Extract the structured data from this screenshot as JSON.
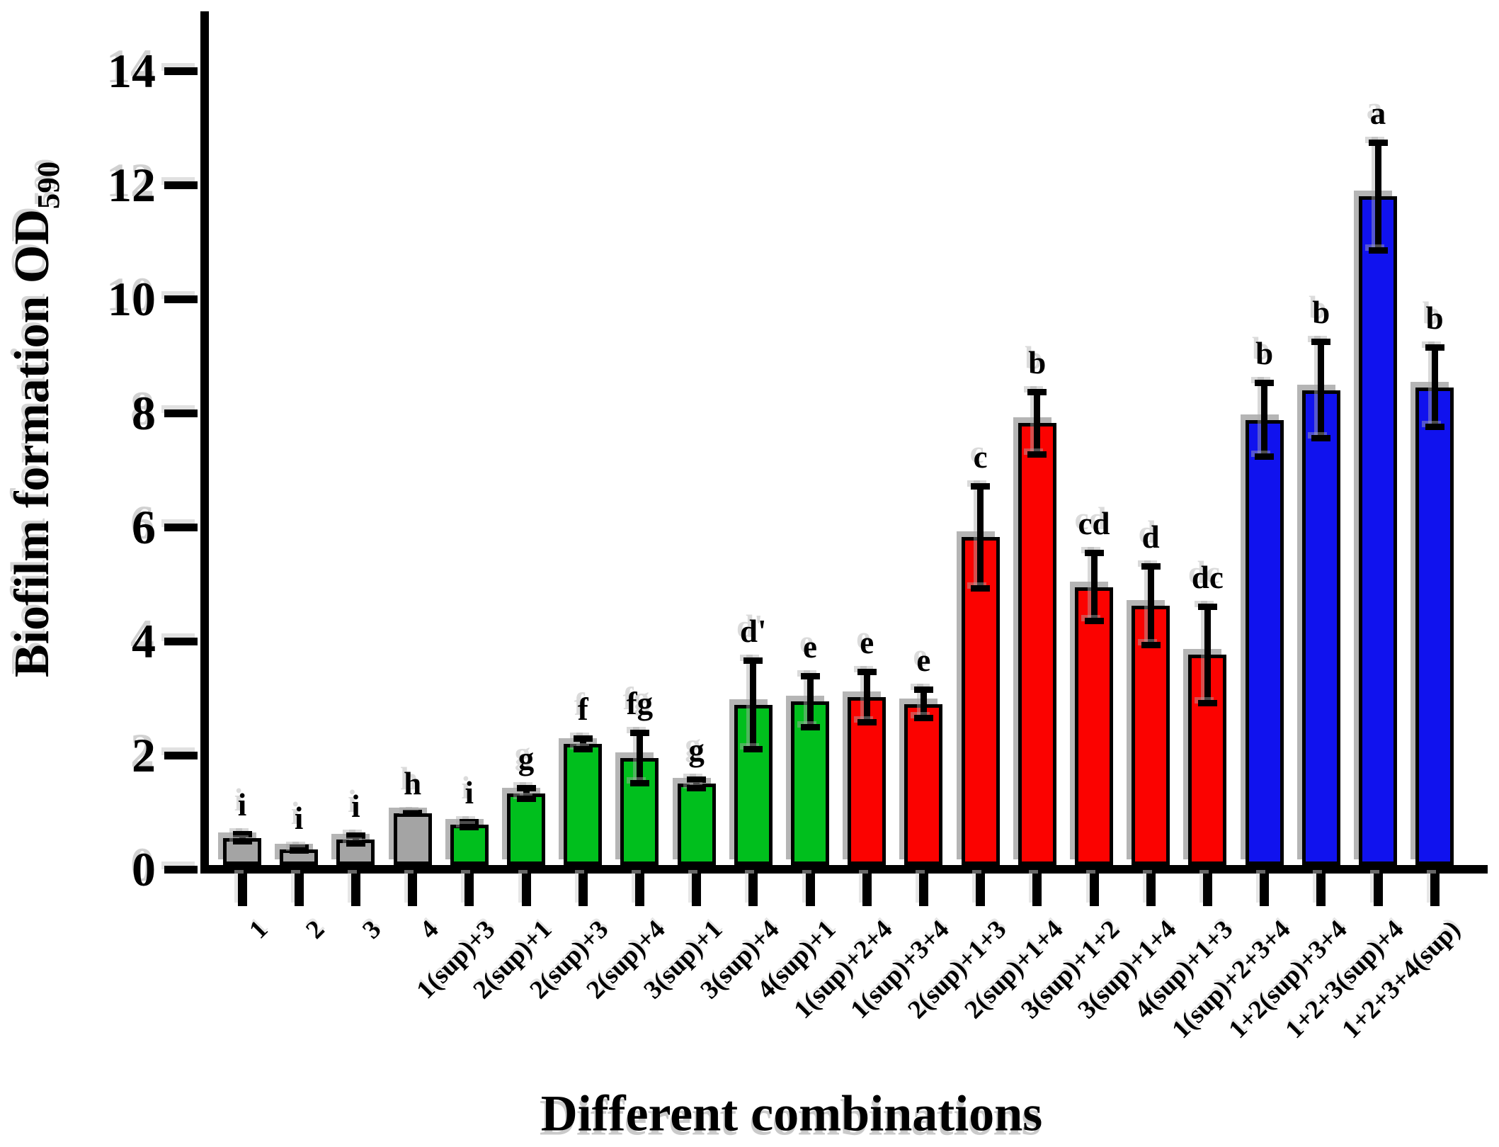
{
  "chart_data": {
    "type": "bar",
    "title": "",
    "xlabel": "Different combinations",
    "ylabel": "Biofilm formation OD590",
    "ylabel_main": "Biofilm formation OD",
    "ylabel_subscript": "590",
    "ylim": [
      0,
      15
    ],
    "yticks": [
      0,
      2,
      4,
      6,
      8,
      10,
      12,
      14
    ],
    "grid": false,
    "legend": false,
    "error_bars": true,
    "categories": [
      "1",
      "2",
      "3",
      "4",
      "1(sup)+3",
      "2(sup)+1",
      "2(sup)+3",
      "2(sup)+4",
      "3(sup)+1",
      "3(sup)+4",
      "4(sup)+1",
      "1(sup)+2+4",
      "1(sup)+3+4",
      "2(sup)+1+3",
      "2(sup)+1+4",
      "3(sup)+1+2",
      "3(sup)+1+4",
      "4(sup)+1+3",
      "1(sup)+2+3+4",
      "1+2(sup)+3+4",
      "1+2+3(sup)+4",
      "1+2+3+4(sup)"
    ],
    "series": [
      {
        "name": "Biofilm formation OD590",
        "values": [
          0.55,
          0.35,
          0.52,
          0.98,
          0.78,
          1.33,
          2.2,
          1.95,
          1.5,
          2.88,
          2.94,
          3.02,
          2.9,
          5.82,
          7.82,
          4.95,
          4.62,
          3.76,
          7.88,
          8.4,
          11.8,
          8.45
        ],
        "errors": [
          0.12,
          0.08,
          0.12,
          0.06,
          0.1,
          0.15,
          0.15,
          0.5,
          0.13,
          0.83,
          0.5,
          0.5,
          0.3,
          0.95,
          0.6,
          0.65,
          0.75,
          0.9,
          0.7,
          0.9,
          1.0,
          0.75
        ],
        "sig_letters": [
          "i",
          "i",
          "i",
          "h",
          "i",
          "g",
          "f",
          "fg",
          "g",
          "d'",
          "e",
          "e",
          "e",
          "c",
          "b",
          "cd",
          "d",
          "dc",
          "b",
          "b",
          "a",
          "b"
        ]
      }
    ],
    "bar_groups": [
      "gray",
      "gray",
      "gray",
      "gray",
      "green",
      "green",
      "green",
      "green",
      "green",
      "green",
      "green",
      "red",
      "red",
      "red",
      "red",
      "red",
      "red",
      "red",
      "blue",
      "blue",
      "blue",
      "blue"
    ]
  },
  "y_axis": {
    "title_main": "Biofilm formation OD",
    "title_sub": "590",
    "tick_labels": [
      "0",
      "2",
      "4",
      "6",
      "8",
      "10",
      "12",
      "14"
    ]
  },
  "x_axis": {
    "title": "Different combinations"
  },
  "palette": {
    "gray": "#A4A4A4",
    "green": "#00BF1D",
    "red": "#FB0200",
    "blue": "#1012EE",
    "axis": "#000000",
    "shadow": "#B5B5B5",
    "background": "#FFFFFF"
  }
}
